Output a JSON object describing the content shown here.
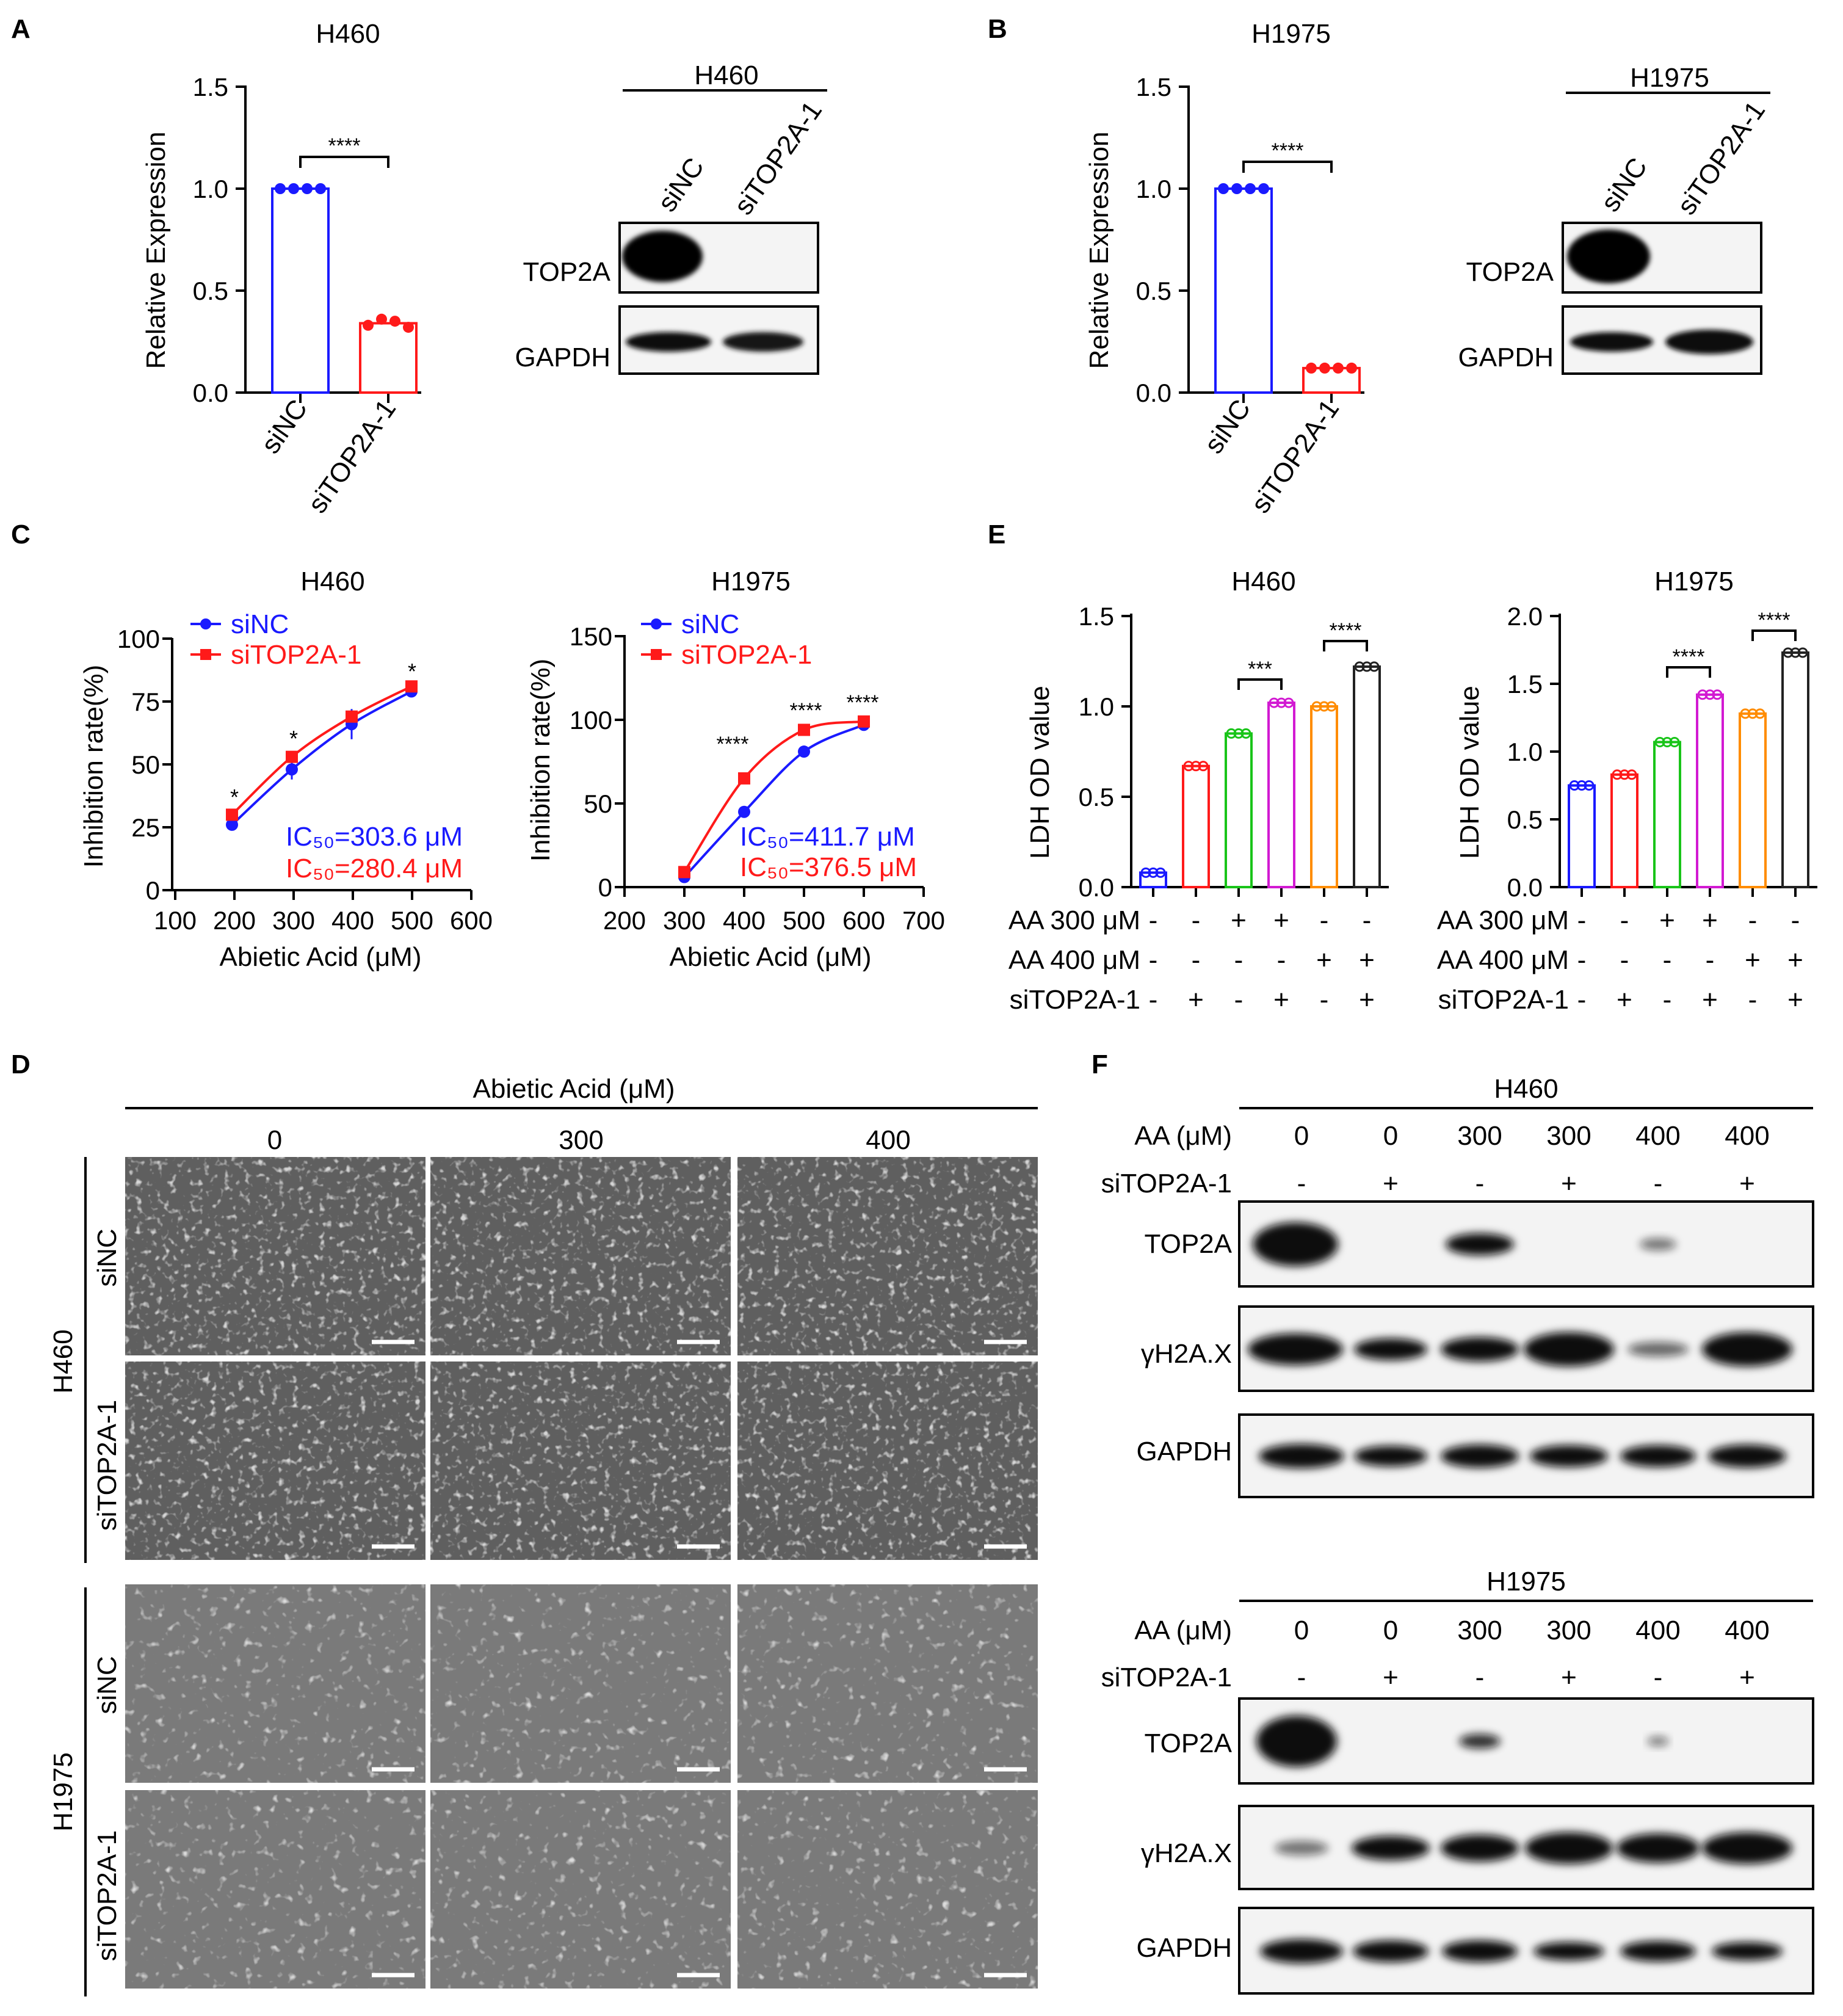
{
  "panels": {
    "A": {
      "letter": "A",
      "bar_title": "H460",
      "ylabel": "Relative Expression",
      "ticks": [
        "0.0",
        "0.5",
        "1.0",
        "1.5"
      ],
      "sig": "****",
      "categories": [
        "siNC",
        "siTOP2A-1"
      ],
      "blot_header": "H460",
      "blot_lanes": [
        "siNC",
        "siTOP2A-1"
      ],
      "blot_rows": [
        "TOP2A",
        "GAPDH"
      ]
    },
    "B": {
      "letter": "B",
      "bar_title": "H1975",
      "ylabel": "Relative Expression",
      "ticks": [
        "0.0",
        "0.5",
        "1.0",
        "1.5"
      ],
      "sig": "****",
      "categories": [
        "siNC",
        "siTOP2A-1"
      ],
      "blot_header": "H1975",
      "blot_lanes": [
        "siNC",
        "siTOP2A-1"
      ],
      "blot_rows": [
        "TOP2A",
        "GAPDH"
      ]
    },
    "C": {
      "letter": "C",
      "left": {
        "title": "H460",
        "ylabel": "Inhibition rate(%)",
        "xlabel": "Abietic Acid (μM)",
        "yticks": [
          "0",
          "25",
          "50",
          "75",
          "100"
        ],
        "xticks": [
          "100",
          "200",
          "300",
          "400",
          "500",
          "600"
        ],
        "legend": [
          "siNC",
          "siTOP2A-1"
        ],
        "ic50": [
          "IC₅₀=303.6 μM",
          "IC₅₀=280.4 μM"
        ],
        "sig": [
          "*",
          "*",
          "*"
        ]
      },
      "right": {
        "title": "H1975",
        "ylabel": "Inhibition rate(%)",
        "xlabel": "Abietic Acid (μM)",
        "yticks": [
          "0",
          "50",
          "100",
          "150"
        ],
        "xticks": [
          "200",
          "300",
          "400",
          "500",
          "600",
          "700"
        ],
        "legend": [
          "siNC",
          "siTOP2A-1"
        ],
        "ic50": [
          "IC₅₀=411.7 μM",
          "IC₅₀=376.5 μM"
        ],
        "sig": [
          "****",
          "****",
          "****"
        ]
      }
    },
    "D": {
      "letter": "D",
      "header": "Abietic Acid (μM)",
      "cols": [
        "0",
        "300",
        "400"
      ],
      "cell_lines": [
        "H460",
        "H1975"
      ],
      "rows": [
        "siNC",
        "siTOP2A-1"
      ]
    },
    "E": {
      "letter": "E",
      "left": {
        "title": "H460",
        "ylabel": "LDH OD value",
        "yticks": [
          "0.0",
          "0.5",
          "1.0",
          "1.5"
        ],
        "sig": [
          "***",
          "****"
        ]
      },
      "right": {
        "title": "H1975",
        "ylabel": "LDH OD value",
        "yticks": [
          "0.0",
          "0.5",
          "1.0",
          "1.5",
          "2.0"
        ],
        "sig": [
          "****",
          "****"
        ]
      },
      "conditions": [
        {
          "label": "AA 300 μM",
          "signs": [
            "-",
            "-",
            "+",
            "+",
            "-",
            "-"
          ]
        },
        {
          "label": "AA 400 μM",
          "signs": [
            "-",
            "-",
            "-",
            "-",
            "+",
            "+"
          ]
        },
        {
          "label": "siTOP2A-1",
          "signs": [
            "-",
            "+",
            "-",
            "+",
            "-",
            "+"
          ]
        }
      ]
    },
    "F": {
      "letter": "F",
      "blocks": [
        {
          "header": "H460",
          "aa_label": "AA (μM)",
          "si_label": "siTOP2A-1",
          "aa": [
            "0",
            "0",
            "300",
            "300",
            "400",
            "400"
          ],
          "si": [
            "-",
            "+",
            "-",
            "+",
            "-",
            "+"
          ],
          "rows": [
            "TOP2A",
            "γH2A.X",
            "GAPDH"
          ]
        },
        {
          "header": "H1975",
          "aa_label": "AA (μM)",
          "si_label": "siTOP2A-1",
          "aa": [
            "0",
            "0",
            "300",
            "300",
            "400",
            "400"
          ],
          "si": [
            "-",
            "+",
            "-",
            "+",
            "-",
            "+"
          ],
          "rows": [
            "TOP2A",
            "γH2A.X",
            "GAPDH"
          ]
        }
      ]
    }
  },
  "colors": {
    "blue": "#1a1aff",
    "red": "#ff1a1a",
    "green": "#19c419",
    "magenta": "#d21ad2",
    "orange": "#ff8c00",
    "black": "#222222"
  },
  "chart_data": [
    {
      "type": "bar",
      "title": "H460",
      "ylabel": "Relative Expression",
      "ylim": [
        0,
        1.5
      ],
      "categories": [
        "siNC",
        "siTOP2A-1"
      ],
      "values": [
        1.0,
        0.34
      ],
      "points": [
        [
          1.0,
          1.0,
          1.0,
          1.0
        ],
        [
          0.33,
          0.36,
          0.35,
          0.32
        ]
      ],
      "colors": [
        "#1a1aff",
        "#ff1a1a"
      ]
    },
    {
      "type": "bar",
      "title": "H1975",
      "ylabel": "Relative Expression",
      "ylim": [
        0,
        1.5
      ],
      "categories": [
        "siNC",
        "siTOP2A-1"
      ],
      "values": [
        1.0,
        0.12
      ],
      "points": [
        [
          1.0,
          1.0,
          1.0,
          1.0
        ],
        [
          0.12,
          0.12,
          0.12,
          0.12
        ]
      ],
      "colors": [
        "#1a1aff",
        "#ff1a1a"
      ]
    },
    {
      "type": "line",
      "title": "H460",
      "xlabel": "Abietic Acid (μM)",
      "ylabel": "Inhibition rate(%)",
      "xlim": [
        100,
        600
      ],
      "ylim": [
        0,
        100
      ],
      "x": [
        200,
        300,
        400,
        500
      ],
      "series": [
        {
          "name": "siNC",
          "values": [
            26,
            48,
            66,
            79
          ],
          "err": [
            2,
            4,
            6,
            2
          ],
          "color": "#1a1aff"
        },
        {
          "name": "siTOP2A-1",
          "values": [
            30,
            53,
            69,
            81
          ],
          "err": [
            1,
            2,
            2,
            1
          ],
          "color": "#ff1a1a"
        }
      ]
    },
    {
      "type": "line",
      "title": "H1975",
      "xlabel": "Abietic Acid (μM)",
      "ylabel": "Inhibition rate(%)",
      "xlim": [
        200,
        700
      ],
      "ylim": [
        0,
        150
      ],
      "x": [
        300,
        400,
        500,
        600
      ],
      "series": [
        {
          "name": "siNC",
          "values": [
            6,
            45,
            81,
            97
          ],
          "err": [
            1,
            1,
            1,
            1
          ],
          "color": "#1a1aff"
        },
        {
          "name": "siTOP2A-1",
          "values": [
            9,
            65,
            94,
            99
          ],
          "err": [
            1,
            1,
            1,
            1
          ],
          "color": "#ff1a1a"
        }
      ]
    },
    {
      "type": "bar",
      "title": "H460",
      "ylabel": "LDH OD value",
      "ylim": [
        0,
        1.5
      ],
      "values": [
        0.08,
        0.67,
        0.85,
        1.02,
        1.0,
        1.22
      ],
      "colors": [
        "#1a1aff",
        "#ff1a1a",
        "#19c419",
        "#d21ad2",
        "#ff8c00",
        "#222222"
      ]
    },
    {
      "type": "bar",
      "title": "H1975",
      "ylabel": "LDH OD value",
      "ylim": [
        0,
        2.0
      ],
      "values": [
        0.75,
        0.83,
        1.07,
        1.42,
        1.28,
        1.73
      ],
      "colors": [
        "#1a1aff",
        "#ff1a1a",
        "#19c419",
        "#d21ad2",
        "#ff8c00",
        "#222222"
      ]
    }
  ]
}
